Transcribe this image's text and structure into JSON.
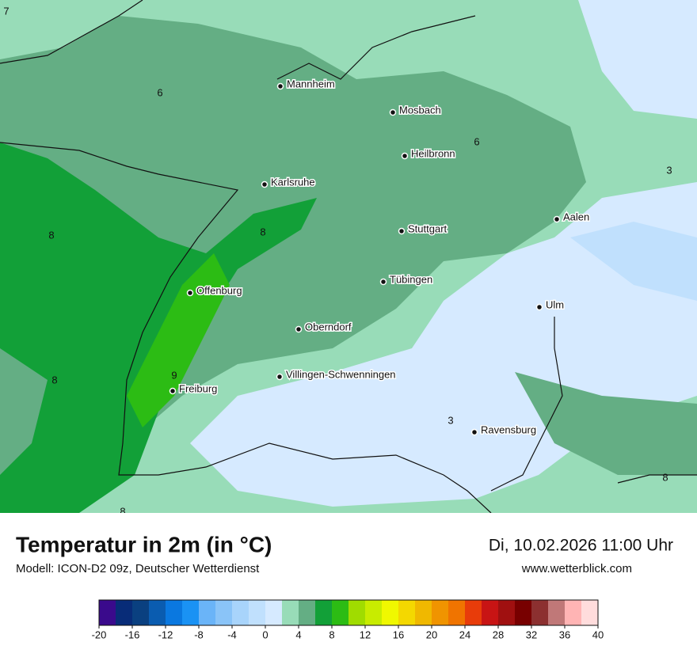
{
  "map": {
    "cities": [
      "Mannheim",
      "Mosbach",
      "Heilbronn",
      "Karlsruhe",
      "Aalen",
      "Stuttgart",
      "Tübingen",
      "Ulm",
      "Offenburg",
      "Oberndorf",
      "Villingen-Schwenningen",
      "Freiburg",
      "Ravensburg"
    ],
    "contour_labels": [
      "7",
      "6",
      "6",
      "3",
      "8",
      "8",
      "9",
      "8",
      "3",
      "8",
      "8"
    ]
  },
  "footer": {
    "title": "Temperatur in 2m (in °C)",
    "model": "Modell: ICON-D2 09z, Deutscher Wetterdienst",
    "datetime": "Di, 10.02.2026 11:00 Uhr",
    "website": "www.wetterblick.com"
  },
  "colorbar": {
    "lim": [
      -20,
      40
    ],
    "ticks": [
      -20,
      -16,
      -12,
      -8,
      -4,
      0,
      4,
      8,
      12,
      16,
      20,
      24,
      28,
      32,
      36,
      40
    ],
    "colors": [
      "#3a0a8c",
      "#082c78",
      "#0a4080",
      "#0a5cb0",
      "#0a78e0",
      "#1a92f4",
      "#6ab4f8",
      "#8ac4f8",
      "#a8d4fb",
      "#c0e0fd",
      "#d6eaff",
      "#98dcb8",
      "#64ae84",
      "#12a038",
      "#2cbc14",
      "#a0dc00",
      "#c8ec00",
      "#f0f800",
      "#f4d800",
      "#f0b800",
      "#f09400",
      "#f07400",
      "#e83c0a",
      "#c81414",
      "#a01010",
      "#780000",
      "#8c3030",
      "#c07878",
      "#ffb4b4",
      "#ffdcdc"
    ]
  }
}
